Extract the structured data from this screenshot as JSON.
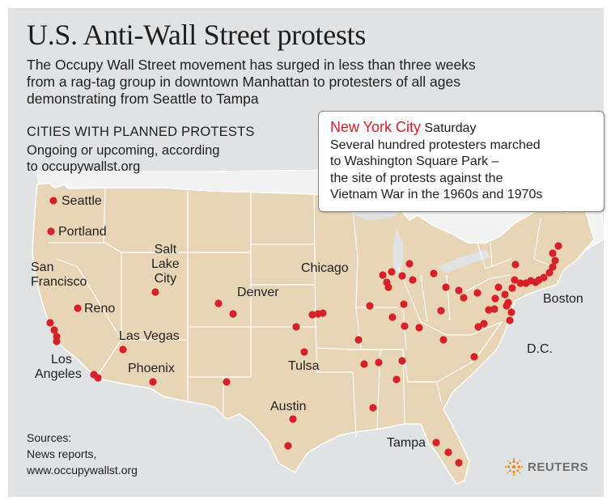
{
  "title": "U.S. Anti-Wall Street protests",
  "subtitle_lines": [
    "The Occupy Wall Street movement has surged in less than three weeks",
    "from a rag-tag group in downtown Manhattan to protesters of all ages",
    "demonstrating from Seattle to Tampa"
  ],
  "legend": {
    "heading": "CITIES WITH PLANNED PROTESTS",
    "desc_lines": [
      "Ongoing or upcoming, according",
      "to occupywallst.org"
    ]
  },
  "callout": {
    "city": "New York City",
    "day": "Saturday",
    "lines": [
      "Several hundred protesters marched",
      "to Washington Square Park –",
      "the site of protests against the",
      "Vietnam War in the 1960s and 1970s"
    ]
  },
  "city_labels": {
    "seattle": "Seattle",
    "portland": "Portland",
    "san_francisco": [
      "San",
      "Francisco"
    ],
    "reno": "Reno",
    "salt_lake_city": [
      "Salt",
      "Lake",
      "City"
    ],
    "las_vegas": "Las Vegas",
    "los_angeles": [
      "Los",
      "Angeles"
    ],
    "phoenix": "Phoenix",
    "denver": "Denver",
    "chicago": "Chicago",
    "tulsa": "Tulsa",
    "austin": "Austin",
    "tampa": "Tampa",
    "boston": "Boston",
    "dc": "D.C."
  },
  "sources_lines": [
    "Sources:",
    "News reports,",
    "www.occupywallst.org"
  ],
  "brand": {
    "name": "REUTERS",
    "icon": "reuters-logo-icon"
  },
  "colors": {
    "background": "#e1e2e4",
    "land": "#e8d5b5",
    "border": "#ffffff",
    "dot": "#d7212a",
    "callout_city": "#d32028"
  }
}
